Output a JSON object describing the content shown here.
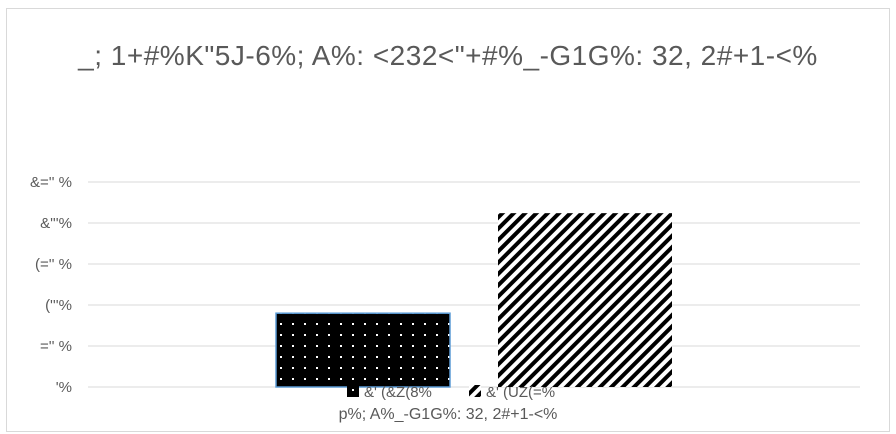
{
  "chart_data": {
    "type": "bar",
    "title": "_; 1+#%K\"5J-6%; A%: <232<\"+#%_-G1G%: 32, 2#+1-<%",
    "xlabel": "p%; A%_-G1G%: 32, 2#+1-<%",
    "ylabel": "",
    "categories": [
      ""
    ],
    "series": [
      {
        "name": "&' (&Z(8%",
        "values": [
          90
        ],
        "pattern": "dots",
        "color": "#000000"
      },
      {
        "name": "&' (UZ(=%",
        "values": [
          212
        ],
        "pattern": "diagonal",
        "color": "#000000"
      }
    ],
    "ylim": [
      0,
      250
    ],
    "yticks": [
      0,
      50,
      100,
      150,
      200,
      250
    ],
    "ytick_labels": [
      "'%",
      "='' %",
      "('''%",
      "(='' %",
      "&'''%",
      "&='' %"
    ],
    "grid": true,
    "legend": "bottom"
  }
}
